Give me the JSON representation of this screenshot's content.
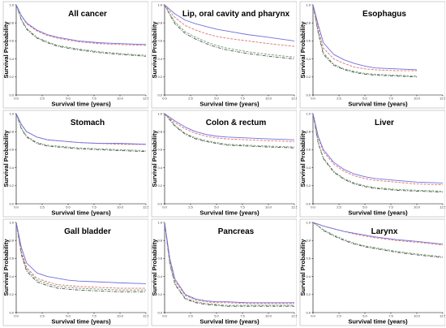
{
  "chart_data": {
    "type": "line",
    "layout": "3x3 small multiples",
    "xlabel": "Survival time (years)",
    "ylabel": "Survival Probability",
    "xlim": [
      0,
      12.5
    ],
    "ylim": [
      0,
      1.0
    ],
    "x_ticks": [
      "0.0",
      "2.5",
      "5.0",
      "7.5",
      "10.0",
      "12.5"
    ],
    "y_ticks": [
      "0.0",
      "0.2",
      "0.4",
      "0.6",
      "0.8",
      "1.0"
    ],
    "series_styles": [
      {
        "color": "#7070e0",
        "dash": "none"
      },
      {
        "color": "#e07070",
        "dash": "3,1.5"
      },
      {
        "color": "#70a070",
        "dash": "3,1.5"
      },
      {
        "color": "#505050",
        "dash": "4,1.5,1,1.5"
      }
    ],
    "x": [
      0,
      0.5,
      1,
      2,
      3,
      4,
      5,
      6,
      8,
      10,
      12.5
    ],
    "panels": [
      {
        "title": "All cancer",
        "series": [
          [
            1,
            0.88,
            0.8,
            0.72,
            0.67,
            0.64,
            0.62,
            0.6,
            0.58,
            0.57,
            0.56
          ],
          [
            1,
            0.88,
            0.79,
            0.71,
            0.66,
            0.63,
            0.61,
            0.59,
            0.57,
            0.56,
            0.55
          ],
          [
            1,
            0.84,
            0.74,
            0.64,
            0.59,
            0.55,
            0.53,
            0.51,
            0.48,
            0.46,
            0.44
          ],
          [
            1,
            0.83,
            0.73,
            0.63,
            0.58,
            0.54,
            0.52,
            0.5,
            0.47,
            0.45,
            0.43
          ]
        ]
      },
      {
        "title": "Lip, oral cavity and pharynx",
        "series": [
          [
            1,
            0.95,
            0.9,
            0.83,
            0.79,
            0.76,
            0.73,
            0.71,
            0.67,
            0.64,
            0.6
          ],
          [
            1,
            0.93,
            0.86,
            0.77,
            0.72,
            0.68,
            0.65,
            0.63,
            0.6,
            0.57,
            0.54
          ],
          [
            1,
            0.9,
            0.81,
            0.7,
            0.64,
            0.59,
            0.55,
            0.52,
            0.48,
            0.45,
            0.42
          ],
          [
            1,
            0.89,
            0.79,
            0.68,
            0.62,
            0.57,
            0.53,
            0.5,
            0.46,
            0.43,
            0.4
          ]
        ]
      },
      {
        "title": "Esophagus",
        "series": [
          [
            1,
            0.78,
            0.58,
            0.45,
            0.39,
            0.35,
            0.32,
            0.3,
            0.29,
            0.28,
            null
          ],
          [
            1,
            0.74,
            0.52,
            0.4,
            0.35,
            0.31,
            0.29,
            0.28,
            0.27,
            0.27,
            null
          ],
          [
            1,
            0.7,
            0.47,
            0.34,
            0.29,
            0.26,
            0.24,
            0.23,
            0.22,
            0.21,
            null
          ],
          [
            1,
            0.69,
            0.45,
            0.33,
            0.28,
            0.25,
            0.23,
            0.22,
            0.21,
            0.2,
            null
          ]
        ]
      },
      {
        "title": "Stomach",
        "series": [
          [
            1,
            0.88,
            0.8,
            0.74,
            0.71,
            0.7,
            0.69,
            0.68,
            0.67,
            0.67,
            0.66
          ],
          [
            1,
            0.88,
            0.8,
            0.74,
            0.71,
            0.7,
            0.69,
            0.68,
            0.67,
            0.66,
            0.66
          ],
          [
            1,
            0.84,
            0.75,
            0.68,
            0.65,
            0.64,
            0.63,
            0.62,
            0.61,
            0.6,
            0.59
          ],
          [
            1,
            0.83,
            0.74,
            0.67,
            0.64,
            0.63,
            0.62,
            0.61,
            0.6,
            0.59,
            0.58
          ]
        ]
      },
      {
        "title": "Colon & rectum",
        "series": [
          [
            1,
            0.96,
            0.92,
            0.85,
            0.8,
            0.77,
            0.75,
            0.74,
            0.73,
            0.72,
            0.71
          ],
          [
            1,
            0.95,
            0.9,
            0.83,
            0.78,
            0.75,
            0.73,
            0.72,
            0.71,
            0.7,
            0.69
          ],
          [
            1,
            0.94,
            0.87,
            0.78,
            0.73,
            0.7,
            0.68,
            0.66,
            0.65,
            0.64,
            0.63
          ],
          [
            1,
            0.93,
            0.86,
            0.77,
            0.72,
            0.69,
            0.67,
            0.65,
            0.64,
            0.63,
            0.62
          ]
        ]
      },
      {
        "title": "Liver",
        "series": [
          [
            1,
            0.75,
            0.6,
            0.46,
            0.38,
            0.33,
            0.3,
            0.28,
            0.26,
            0.24,
            0.23
          ],
          [
            1,
            0.73,
            0.58,
            0.44,
            0.36,
            0.31,
            0.28,
            0.26,
            0.24,
            0.22,
            0.21
          ],
          [
            1,
            0.68,
            0.51,
            0.36,
            0.28,
            0.23,
            0.2,
            0.18,
            0.16,
            0.15,
            0.14
          ],
          [
            1,
            0.67,
            0.5,
            0.35,
            0.27,
            0.22,
            0.19,
            0.17,
            0.15,
            0.14,
            0.13
          ]
        ]
      },
      {
        "title": "Gall bladder",
        "series": [
          [
            1,
            0.72,
            0.55,
            0.44,
            0.4,
            0.38,
            0.36,
            0.35,
            0.34,
            0.33,
            0.32
          ],
          [
            1,
            0.68,
            0.5,
            0.38,
            0.34,
            0.31,
            0.3,
            0.29,
            0.28,
            0.27,
            0.27
          ],
          [
            1,
            0.66,
            0.48,
            0.36,
            0.32,
            0.29,
            0.28,
            0.27,
            0.26,
            0.25,
            0.25
          ],
          [
            1,
            0.64,
            0.46,
            0.34,
            0.3,
            0.27,
            0.26,
            0.25,
            0.24,
            0.23,
            0.23
          ]
        ]
      },
      {
        "title": "Pancreas",
        "series": [
          [
            1,
            0.6,
            0.37,
            0.2,
            0.15,
            0.13,
            0.12,
            0.12,
            0.11,
            0.11,
            0.11
          ],
          [
            1,
            0.58,
            0.35,
            0.19,
            0.14,
            0.12,
            0.11,
            0.11,
            0.1,
            0.1,
            0.1
          ],
          [
            1,
            0.55,
            0.32,
            0.16,
            0.12,
            0.1,
            0.09,
            0.08,
            0.08,
            0.08,
            0.08
          ],
          [
            1,
            0.54,
            0.31,
            0.15,
            0.11,
            0.09,
            0.08,
            0.07,
            0.07,
            0.07,
            0.07
          ]
        ]
      },
      {
        "title": "Larynx",
        "series": [
          [
            1,
            0.98,
            0.96,
            0.93,
            0.9,
            0.88,
            0.86,
            0.84,
            0.81,
            0.79,
            0.76
          ],
          [
            1,
            0.98,
            0.96,
            0.93,
            0.9,
            0.87,
            0.85,
            0.83,
            0.8,
            0.78,
            0.75
          ],
          [
            1,
            0.96,
            0.92,
            0.86,
            0.81,
            0.77,
            0.74,
            0.72,
            0.68,
            0.65,
            0.62
          ],
          [
            1,
            0.96,
            0.91,
            0.85,
            0.8,
            0.76,
            0.73,
            0.71,
            0.67,
            0.64,
            0.61
          ]
        ]
      }
    ]
  }
}
